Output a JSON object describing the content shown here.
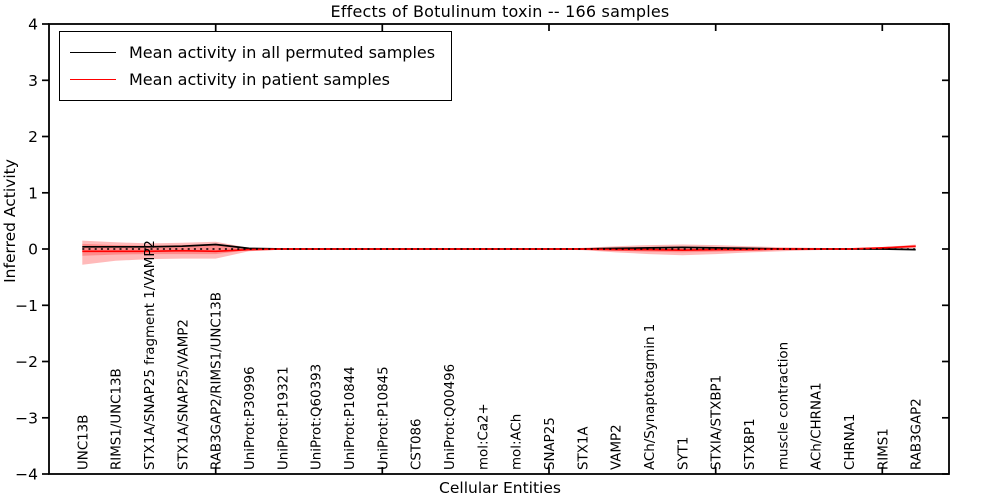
{
  "figure": {
    "title": "Effects of Botulinum toxin -- 166 samples",
    "xlabel": "Cellular Entities",
    "ylabel": "Inferred Activity"
  },
  "legend": {
    "items": [
      {
        "label": "Mean activity in all permuted samples",
        "color": "#000000"
      },
      {
        "label": "Mean activity in patient samples",
        "color": "#ff0000"
      }
    ]
  },
  "chart_data": {
    "type": "line",
    "title": "Effects of Botulinum toxin -- 166 samples",
    "xlabel": "Cellular Entities",
    "ylabel": "Inferred Activity",
    "ylim": [
      -4,
      4
    ],
    "xlim": [
      0,
      27
    ],
    "grid": false,
    "legend_position": "upper left",
    "ytick_values": [
      4,
      3,
      2,
      1,
      0,
      -1,
      -2,
      -3,
      -4
    ],
    "ytick_labels": [
      "4",
      "3",
      "2",
      "1",
      "0",
      "−1",
      "−2",
      "−3",
      "−4"
    ],
    "x_major_ticks": [
      5,
      10,
      15,
      20,
      25
    ],
    "categories": [
      "UNC13B",
      "RIMS1/UNC13B",
      "STX1A/SNAP25 fragment 1/VAMP2",
      "STX1A/SNAP25/VAMP2",
      "RAB3GAP2/RIMS1/UNC13B",
      "UniProt:P30996",
      "UniProt:P19321",
      "UniProt:Q60393",
      "UniProt:P10844",
      "UniProt:P10845",
      "CST086",
      "UniProt:Q00496",
      "mol:Ca2+",
      "mol:ACh",
      "SNAP25",
      "STX1A",
      "VAMP2",
      "ACh/Synaptotagmin 1",
      "SYT1",
      "STXIA/STXBP1",
      "STXBP1",
      "muscle contraction",
      "ACh/CHRNA1",
      "CHRNA1",
      "RIMS1",
      "RAB3GAP2"
    ],
    "series": [
      {
        "name": "Mean activity in all permuted samples",
        "color": "#000000",
        "style": "solid",
        "values": [
          0.04,
          0.04,
          0.04,
          0.05,
          0.08,
          0.01,
          0,
          0,
          0,
          0,
          0,
          0,
          0,
          0,
          0,
          0,
          0.01,
          0.02,
          0.03,
          0.02,
          0.01,
          0,
          0,
          0,
          0,
          -0.01
        ]
      },
      {
        "name": "Mean activity in patient samples",
        "color": "#ff0000",
        "style": "solid",
        "values": [
          -0.04,
          -0.04,
          -0.04,
          -0.03,
          -0.04,
          -0.01,
          0,
          0,
          0,
          0,
          0,
          0,
          0,
          0,
          0,
          0,
          -0.01,
          -0.01,
          -0.02,
          -0.01,
          -0.01,
          0,
          0,
          0,
          0.02,
          0.05
        ]
      },
      {
        "name": "zero reference",
        "color": "#000000",
        "style": "dotted",
        "values": [
          0,
          0,
          0,
          0,
          0,
          0,
          0,
          0,
          0,
          0,
          0,
          0,
          0,
          0,
          0,
          0,
          0,
          0,
          0,
          0,
          0,
          0,
          0,
          0,
          0,
          0
        ]
      }
    ],
    "bands": [
      {
        "name": "patient std outer",
        "color": "rgba(255,0,0,0.27)",
        "upper": [
          0.15,
          0.12,
          0.1,
          0.11,
          0.13,
          0.02,
          0.01,
          0.01,
          0.01,
          0.01,
          0.01,
          0.01,
          0.01,
          0.01,
          0.01,
          0.02,
          0.05,
          0.07,
          0.08,
          0.07,
          0.05,
          0.03,
          0.02,
          0.01,
          0.03,
          0.08
        ],
        "lower": [
          -0.28,
          -0.21,
          -0.18,
          -0.17,
          -0.17,
          -0.04,
          -0.01,
          -0.01,
          -0.01,
          -0.01,
          -0.01,
          -0.01,
          -0.01,
          -0.01,
          -0.01,
          -0.02,
          -0.06,
          -0.09,
          -0.11,
          -0.09,
          -0.06,
          -0.04,
          -0.02,
          -0.01,
          -0.01,
          0.02
        ]
      },
      {
        "name": "patient std inner",
        "color": "rgba(255,0,0,0.25)",
        "upper": [
          0.09,
          0.07,
          0.06,
          0.07,
          0.09,
          0.01,
          0.005,
          0.005,
          0.005,
          0.005,
          0.005,
          0.005,
          0.005,
          0.005,
          0.005,
          0.01,
          0.02,
          0.03,
          0.04,
          0.03,
          0.02,
          0.01,
          0.005,
          0.005,
          0.02,
          0.06
        ],
        "lower": [
          -0.12,
          -0.1,
          -0.09,
          -0.09,
          -0.09,
          -0.02,
          -0.005,
          -0.005,
          -0.005,
          -0.005,
          -0.005,
          -0.005,
          -0.005,
          -0.005,
          -0.005,
          -0.01,
          -0.03,
          -0.05,
          -0.06,
          -0.05,
          -0.03,
          -0.02,
          -0.01,
          -0.005,
          0,
          0.03
        ]
      }
    ]
  }
}
